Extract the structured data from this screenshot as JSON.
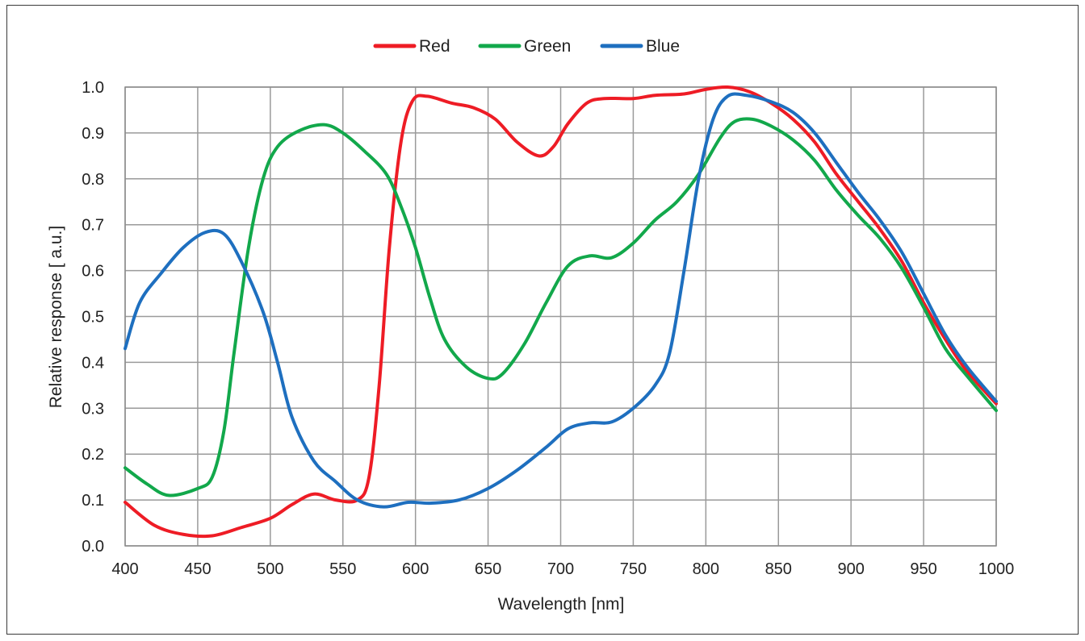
{
  "chart_data": {
    "type": "line",
    "title": "",
    "xlabel": "Wavelength [nm]",
    "ylabel": "Relative response [ a.u.]",
    "xlim": [
      400,
      1000
    ],
    "ylim": [
      0.0,
      1.0
    ],
    "x_ticks": [
      "400",
      "450",
      "500",
      "550",
      "600",
      "650",
      "700",
      "750",
      "800",
      "850",
      "900",
      "950",
      "1000"
    ],
    "y_ticks": [
      "0.0",
      "0.1",
      "0.2",
      "0.3",
      "0.4",
      "0.5",
      "0.6",
      "0.7",
      "0.8",
      "0.9",
      "1.0"
    ],
    "grid": true,
    "legend": "top-center",
    "series": [
      {
        "name": "Red",
        "color": "#ee1c25",
        "points": [
          [
            400,
            0.095
          ],
          [
            420,
            0.045
          ],
          [
            440,
            0.025
          ],
          [
            460,
            0.022
          ],
          [
            480,
            0.04
          ],
          [
            500,
            0.06
          ],
          [
            515,
            0.09
          ],
          [
            530,
            0.113
          ],
          [
            545,
            0.1
          ],
          [
            560,
            0.1
          ],
          [
            568,
            0.15
          ],
          [
            575,
            0.35
          ],
          [
            582,
            0.65
          ],
          [
            590,
            0.88
          ],
          [
            598,
            0.97
          ],
          [
            608,
            0.98
          ],
          [
            625,
            0.965
          ],
          [
            640,
            0.955
          ],
          [
            655,
            0.93
          ],
          [
            670,
            0.88
          ],
          [
            685,
            0.85
          ],
          [
            695,
            0.87
          ],
          [
            705,
            0.92
          ],
          [
            718,
            0.965
          ],
          [
            730,
            0.975
          ],
          [
            750,
            0.975
          ],
          [
            765,
            0.982
          ],
          [
            785,
            0.985
          ],
          [
            800,
            0.995
          ],
          [
            815,
            1.0
          ],
          [
            830,
            0.99
          ],
          [
            845,
            0.965
          ],
          [
            860,
            0.93
          ],
          [
            875,
            0.88
          ],
          [
            890,
            0.81
          ],
          [
            905,
            0.75
          ],
          [
            920,
            0.69
          ],
          [
            935,
            0.62
          ],
          [
            950,
            0.53
          ],
          [
            965,
            0.45
          ],
          [
            980,
            0.38
          ],
          [
            1000,
            0.31
          ]
        ]
      },
      {
        "name": "Green",
        "color": "#12a84b",
        "points": [
          [
            400,
            0.17
          ],
          [
            415,
            0.135
          ],
          [
            430,
            0.11
          ],
          [
            450,
            0.125
          ],
          [
            460,
            0.15
          ],
          [
            468,
            0.25
          ],
          [
            475,
            0.42
          ],
          [
            485,
            0.65
          ],
          [
            495,
            0.8
          ],
          [
            505,
            0.87
          ],
          [
            520,
            0.905
          ],
          [
            537,
            0.918
          ],
          [
            550,
            0.9
          ],
          [
            565,
            0.86
          ],
          [
            580,
            0.81
          ],
          [
            590,
            0.74
          ],
          [
            600,
            0.65
          ],
          [
            610,
            0.54
          ],
          [
            620,
            0.45
          ],
          [
            635,
            0.39
          ],
          [
            650,
            0.365
          ],
          [
            660,
            0.375
          ],
          [
            675,
            0.44
          ],
          [
            690,
            0.53
          ],
          [
            705,
            0.61
          ],
          [
            720,
            0.632
          ],
          [
            735,
            0.628
          ],
          [
            750,
            0.66
          ],
          [
            765,
            0.71
          ],
          [
            780,
            0.75
          ],
          [
            795,
            0.81
          ],
          [
            810,
            0.89
          ],
          [
            820,
            0.925
          ],
          [
            832,
            0.93
          ],
          [
            845,
            0.915
          ],
          [
            860,
            0.885
          ],
          [
            875,
            0.84
          ],
          [
            890,
            0.775
          ],
          [
            905,
            0.72
          ],
          [
            920,
            0.67
          ],
          [
            935,
            0.605
          ],
          [
            950,
            0.52
          ],
          [
            965,
            0.43
          ],
          [
            980,
            0.37
          ],
          [
            1000,
            0.295
          ]
        ]
      },
      {
        "name": "Blue",
        "color": "#1e6fbf",
        "points": [
          [
            400,
            0.43
          ],
          [
            410,
            0.53
          ],
          [
            425,
            0.595
          ],
          [
            440,
            0.65
          ],
          [
            455,
            0.683
          ],
          [
            468,
            0.68
          ],
          [
            480,
            0.62
          ],
          [
            495,
            0.51
          ],
          [
            505,
            0.4
          ],
          [
            515,
            0.28
          ],
          [
            530,
            0.185
          ],
          [
            545,
            0.14
          ],
          [
            560,
            0.1
          ],
          [
            578,
            0.085
          ],
          [
            595,
            0.095
          ],
          [
            610,
            0.093
          ],
          [
            630,
            0.1
          ],
          [
            650,
            0.125
          ],
          [
            670,
            0.165
          ],
          [
            690,
            0.215
          ],
          [
            705,
            0.255
          ],
          [
            720,
            0.268
          ],
          [
            735,
            0.27
          ],
          [
            750,
            0.3
          ],
          [
            765,
            0.35
          ],
          [
            775,
            0.42
          ],
          [
            785,
            0.6
          ],
          [
            795,
            0.8
          ],
          [
            805,
            0.93
          ],
          [
            815,
            0.98
          ],
          [
            828,
            0.982
          ],
          [
            845,
            0.968
          ],
          [
            860,
            0.945
          ],
          [
            875,
            0.9
          ],
          [
            890,
            0.835
          ],
          [
            905,
            0.77
          ],
          [
            920,
            0.71
          ],
          [
            935,
            0.64
          ],
          [
            950,
            0.55
          ],
          [
            965,
            0.46
          ],
          [
            980,
            0.39
          ],
          [
            1000,
            0.315
          ]
        ]
      }
    ]
  }
}
